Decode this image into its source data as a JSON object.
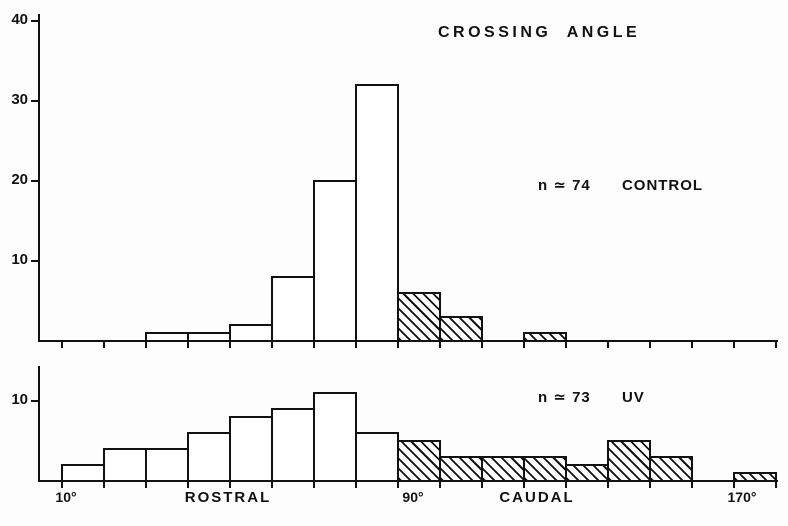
{
  "title": "CROSSING ANGLE",
  "x_axis": {
    "labels": [
      "10°",
      "ROSTRAL",
      "90°",
      "CAUDAL",
      "170°"
    ]
  },
  "chart_data": [
    {
      "type": "bar",
      "subtype": "histogram",
      "panel": "top",
      "annotation": {
        "n_label": "n ≃ 74",
        "condition": "CONTROL"
      },
      "bin_width_deg": 10,
      "x_range_deg": [
        10,
        180
      ],
      "ylim": [
        0,
        40
      ],
      "y_ticks": [
        10,
        20,
        30,
        40
      ],
      "bars": [
        {
          "angle_start": 30,
          "count": 1,
          "hatched": false
        },
        {
          "angle_start": 40,
          "count": 1,
          "hatched": false
        },
        {
          "angle_start": 50,
          "count": 2,
          "hatched": false
        },
        {
          "angle_start": 60,
          "count": 8,
          "hatched": false
        },
        {
          "angle_start": 70,
          "count": 20,
          "hatched": false
        },
        {
          "angle_start": 80,
          "count": 32,
          "hatched": false
        },
        {
          "angle_start": 90,
          "count": 6,
          "hatched": true
        },
        {
          "angle_start": 100,
          "count": 3,
          "hatched": true
        },
        {
          "angle_start": 120,
          "count": 1,
          "hatched": true
        }
      ]
    },
    {
      "type": "bar",
      "subtype": "histogram",
      "panel": "bottom",
      "annotation": {
        "n_label": "n ≃ 73",
        "condition": "UV"
      },
      "bin_width_deg": 10,
      "x_range_deg": [
        10,
        180
      ],
      "ylim": [
        0,
        14
      ],
      "y_ticks": [
        10
      ],
      "bars": [
        {
          "angle_start": 10,
          "count": 2,
          "hatched": false
        },
        {
          "angle_start": 20,
          "count": 4,
          "hatched": false
        },
        {
          "angle_start": 30,
          "count": 4,
          "hatched": false
        },
        {
          "angle_start": 40,
          "count": 6,
          "hatched": false
        },
        {
          "angle_start": 50,
          "count": 8,
          "hatched": false
        },
        {
          "angle_start": 60,
          "count": 9,
          "hatched": false
        },
        {
          "angle_start": 70,
          "count": 11,
          "hatched": false
        },
        {
          "angle_start": 80,
          "count": 6,
          "hatched": false
        },
        {
          "angle_start": 90,
          "count": 5,
          "hatched": true
        },
        {
          "angle_start": 100,
          "count": 3,
          "hatched": true
        },
        {
          "angle_start": 110,
          "count": 3,
          "hatched": true
        },
        {
          "angle_start": 120,
          "count": 3,
          "hatched": true
        },
        {
          "angle_start": 130,
          "count": 2,
          "hatched": true
        },
        {
          "angle_start": 140,
          "count": 5,
          "hatched": true
        },
        {
          "angle_start": 150,
          "count": 3,
          "hatched": true
        },
        {
          "angle_start": 170,
          "count": 1,
          "hatched": true
        }
      ]
    }
  ]
}
